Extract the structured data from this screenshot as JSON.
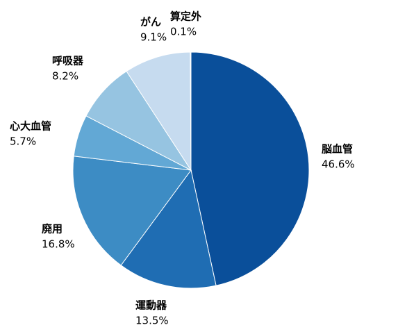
{
  "chart_data": {
    "type": "pie",
    "categories": [
      "脳血管",
      "運動器",
      "廃用",
      "心大血管",
      "呼吸器",
      "がん",
      "算定外"
    ],
    "values": [
      46.6,
      13.5,
      16.8,
      5.7,
      8.2,
      9.1,
      0.1
    ],
    "value_labels": [
      "46.6%",
      "13.5%",
      "16.8%",
      "5.7%",
      "8.2%",
      "9.1%",
      "0.1%"
    ],
    "colors": [
      "#0a4f9a",
      "#1f6db3",
      "#3d8cc4",
      "#62a8d5",
      "#96c4e1",
      "#c6dbef",
      "#dde8f4"
    ]
  }
}
